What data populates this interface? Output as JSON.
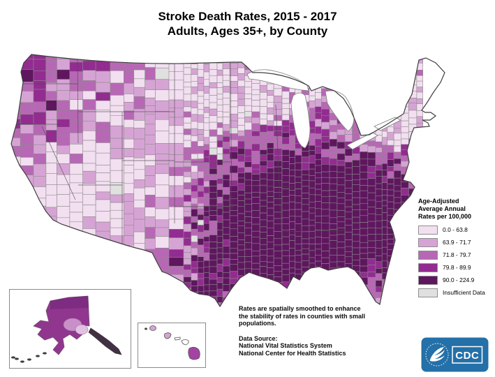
{
  "title": {
    "line1": "Stroke Death Rates, 2015 - 2017",
    "line2": "Adults, Ages 35+, by County"
  },
  "legend": {
    "title_lines": [
      "Age-Adjusted",
      "Average Annual",
      "Rates per 100,000"
    ],
    "items": [
      {
        "label": "0.0 - 63.8",
        "color": "#f2dff0"
      },
      {
        "label": "63.9 - 71.7",
        "color": "#d6a4d4"
      },
      {
        "label": "71.8 - 79.7",
        "color": "#b768b4"
      },
      {
        "label": "79.8 - 89.9",
        "color": "#922c90"
      },
      {
        "label": "90.0 - 224.9",
        "color": "#5e175e"
      },
      {
        "label": "Insufficient Data",
        "color": "#e0e0e0"
      }
    ]
  },
  "notes": {
    "smoothing_lines": [
      "Rates are spatially smoothed to enhance",
      "the stability of rates in counties with small",
      "populations."
    ],
    "source_heading": "Data Source:",
    "source_lines": [
      "National Vital Statistics System",
      "National Center for Health Statistics"
    ]
  },
  "map": {
    "county_border_color": "#8a8a8a",
    "state_border_color": "#4a4a4a",
    "nation_border_color": "#3f3f3f",
    "water_color": "#ffffff",
    "alaska": {
      "body": "#91368f",
      "top_band": "#7c2b80",
      "light_patch": "#c98fc9",
      "lighter_patch": "#e2c0e2",
      "panhandle": "#433043",
      "island_dots": "#3f3f3f"
    },
    "hawaii": {
      "niihau": "#3f3f3f",
      "kauai": "#d6a4d4",
      "oahu": "#d6a4d4",
      "molokai": "#ffffff",
      "maui": "#ffffff",
      "big_island": "#a344a3"
    }
  },
  "logo": {
    "cdc_text": "CDC",
    "bg_color": "#2470a8",
    "fg_color": "#ffffff"
  }
}
